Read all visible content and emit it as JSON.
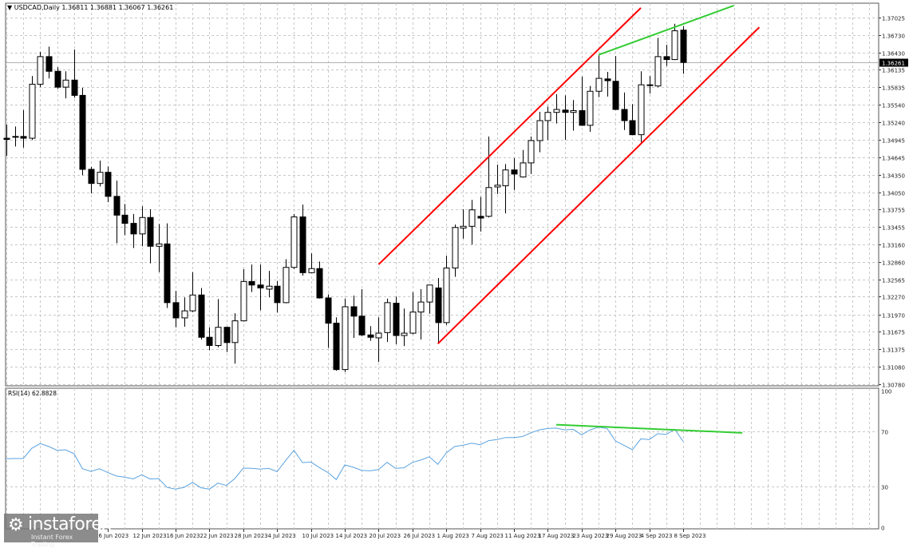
{
  "header": {
    "menu_icon": "triangle-down-icon",
    "title": "USDCAD,Daily 1.36811 1.36881 1.36067 1.36261"
  },
  "rsi": {
    "label": "RSI(14) 62.8828"
  },
  "logo": {
    "name": "instaforex",
    "tagline": "Instant Forex Trading",
    "icon": "gear-icon"
  },
  "colors": {
    "bull_body": "#ffffff",
    "bear_body": "#000000",
    "channel": "#ff0000",
    "divergence": "#33cc33",
    "rsi_line": "#5ba3e0",
    "grid": "#c8c8c8",
    "current_price_bg": "#000000"
  },
  "chart_data": [
    {
      "type": "candlestick",
      "symbol": "USDCAD",
      "timeframe": "Daily",
      "current_price": "1.36261",
      "ylim": [
        1.3078,
        1.372
      ],
      "grid": true,
      "price_ticks": [
        "1.37025",
        "1.36730",
        "1.36430",
        "1.36135",
        "1.35835",
        "1.35540",
        "1.35240",
        "1.34945",
        "1.34645",
        "1.34350",
        "1.34050",
        "1.33755",
        "1.33455",
        "1.33160",
        "1.32860",
        "1.32565",
        "1.32270",
        "1.31970",
        "1.31675",
        "1.31375",
        "1.31080",
        "1.30780"
      ],
      "x_ticks": [
        {
          "date": "2023-06-06",
          "label": "6 Jun 2023"
        },
        {
          "date": "2023-06-12",
          "label": "12 Jun 2023"
        },
        {
          "date": "2023-06-16",
          "label": "16 Jun 2023"
        },
        {
          "date": "2023-06-22",
          "label": "22 Jun 2023"
        },
        {
          "date": "2023-06-28",
          "label": "28 Jun 2023"
        },
        {
          "date": "2023-07-04",
          "label": "4 Jul 2023"
        },
        {
          "date": "2023-07-10",
          "label": "10 Jul 2023"
        },
        {
          "date": "2023-07-14",
          "label": "14 Jul 2023"
        },
        {
          "date": "2023-07-20",
          "label": "20 Jul 2023"
        },
        {
          "date": "2023-07-26",
          "label": "26 Jul 2023"
        },
        {
          "date": "2023-08-01",
          "label": "1 Aug 2023"
        },
        {
          "date": "2023-08-07",
          "label": "7 Aug 2023"
        },
        {
          "date": "2023-08-11",
          "label": "11 Aug 2023"
        },
        {
          "date": "2023-08-17",
          "label": "17 Aug 2023"
        },
        {
          "date": "2023-08-23",
          "label": "23 Aug 2023"
        },
        {
          "date": "2023-08-29",
          "label": "29 Aug 2023"
        },
        {
          "date": "2023-09-04",
          "label": "4 Sep 2023"
        },
        {
          "date": "2023-09-08",
          "label": "8 Sep 2023"
        }
      ],
      "candles": [
        [
          "2023-05-19",
          1.3497,
          1.352,
          1.3467,
          1.3495
        ],
        [
          "2023-05-22",
          1.35,
          1.3517,
          1.3483,
          1.35
        ],
        [
          "2023-05-23",
          1.35,
          1.3545,
          1.3481,
          1.3497
        ],
        [
          "2023-05-24",
          1.3497,
          1.3603,
          1.3494,
          1.3589
        ],
        [
          "2023-05-25",
          1.3589,
          1.3644,
          1.3584,
          1.3636
        ],
        [
          "2023-05-26",
          1.3636,
          1.3653,
          1.3599,
          1.3611
        ],
        [
          "2023-05-29",
          1.3611,
          1.3618,
          1.3581,
          1.3584
        ],
        [
          "2023-05-30",
          1.3584,
          1.3611,
          1.3565,
          1.3596
        ],
        [
          "2023-05-31",
          1.3596,
          1.3648,
          1.3566,
          1.357
        ],
        [
          "2023-06-01",
          1.357,
          1.3583,
          1.3434,
          1.3444
        ],
        [
          "2023-06-02",
          1.3444,
          1.3448,
          1.3403,
          1.342
        ],
        [
          "2023-06-05",
          1.342,
          1.3459,
          1.3415,
          1.3439
        ],
        [
          "2023-06-06",
          1.3439,
          1.3449,
          1.3388,
          1.3398
        ],
        [
          "2023-06-07",
          1.3398,
          1.3425,
          1.3318,
          1.3366
        ],
        [
          "2023-06-08",
          1.3366,
          1.3385,
          1.3332,
          1.3352
        ],
        [
          "2023-06-09",
          1.3352,
          1.3368,
          1.331,
          1.3334
        ],
        [
          "2023-06-12",
          1.3334,
          1.3381,
          1.3313,
          1.3362
        ],
        [
          "2023-06-13",
          1.3362,
          1.3376,
          1.3284,
          1.3313
        ],
        [
          "2023-06-14",
          1.3313,
          1.3351,
          1.3269,
          1.3317
        ],
        [
          "2023-06-15",
          1.3317,
          1.3352,
          1.3208,
          1.3217
        ],
        [
          "2023-06-16",
          1.3217,
          1.3237,
          1.3175,
          1.3191
        ],
        [
          "2023-06-19",
          1.3191,
          1.3226,
          1.3176,
          1.3203
        ],
        [
          "2023-06-20",
          1.3203,
          1.3269,
          1.3201,
          1.323
        ],
        [
          "2023-06-21",
          1.323,
          1.3242,
          1.3154,
          1.3158
        ],
        [
          "2023-06-22",
          1.3158,
          1.3175,
          1.3136,
          1.3144
        ],
        [
          "2023-06-23",
          1.3144,
          1.3223,
          1.3141,
          1.3175
        ],
        [
          "2023-06-26",
          1.3175,
          1.3176,
          1.3133,
          1.3149
        ],
        [
          "2023-06-27",
          1.3149,
          1.3199,
          1.3113,
          1.3186
        ],
        [
          "2023-06-28",
          1.3186,
          1.3274,
          1.3185,
          1.3253
        ],
        [
          "2023-06-29",
          1.3253,
          1.3282,
          1.3235,
          1.3247
        ],
        [
          "2023-06-30",
          1.3247,
          1.3282,
          1.3204,
          1.3242
        ],
        [
          "2023-07-03",
          1.324,
          1.3271,
          1.3226,
          1.3245
        ],
        [
          "2023-07-04",
          1.3245,
          1.3254,
          1.32,
          1.3217
        ],
        [
          "2023-07-05",
          1.3217,
          1.3291,
          1.3216,
          1.3277
        ],
        [
          "2023-07-06",
          1.3277,
          1.3368,
          1.3274,
          1.3363
        ],
        [
          "2023-07-07",
          1.3363,
          1.3384,
          1.3263,
          1.3268
        ],
        [
          "2023-07-10",
          1.3268,
          1.3301,
          1.3267,
          1.3275
        ],
        [
          "2023-07-11",
          1.3275,
          1.3287,
          1.3224,
          1.3225
        ],
        [
          "2023-07-12",
          1.3225,
          1.3231,
          1.314,
          1.3182
        ],
        [
          "2023-07-13",
          1.3182,
          1.3192,
          1.3101,
          1.3103
        ],
        [
          "2023-07-14",
          1.3103,
          1.3224,
          1.3099,
          1.321
        ],
        [
          "2023-07-17",
          1.321,
          1.3229,
          1.3157,
          1.3194
        ],
        [
          "2023-07-18",
          1.3194,
          1.324,
          1.316,
          1.3162
        ],
        [
          "2023-07-19",
          1.3162,
          1.3177,
          1.3152,
          1.3158
        ],
        [
          "2023-07-20",
          1.3157,
          1.3192,
          1.3116,
          1.3165
        ],
        [
          "2023-07-21",
          1.3166,
          1.3224,
          1.315,
          1.3217
        ],
        [
          "2023-07-24",
          1.3216,
          1.3227,
          1.3146,
          1.3161
        ],
        [
          "2023-07-25",
          1.3161,
          1.3207,
          1.3143,
          1.3165
        ],
        [
          "2023-07-26",
          1.3165,
          1.3235,
          1.3163,
          1.3201
        ],
        [
          "2023-07-27",
          1.3201,
          1.324,
          1.3154,
          1.3218
        ],
        [
          "2023-07-28",
          1.3218,
          1.3247,
          1.3198,
          1.3247
        ],
        [
          "2023-07-31",
          1.3242,
          1.3259,
          1.3147,
          1.3183
        ],
        [
          "2023-08-01",
          1.3183,
          1.3297,
          1.3179,
          1.3276
        ],
        [
          "2023-08-02",
          1.3276,
          1.335,
          1.3261,
          1.3345
        ],
        [
          "2023-08-03",
          1.3344,
          1.3376,
          1.3326,
          1.3347
        ],
        [
          "2023-08-04",
          1.3347,
          1.3392,
          1.3316,
          1.3375
        ],
        [
          "2023-08-07",
          1.3364,
          1.3397,
          1.3338,
          1.3361
        ],
        [
          "2023-08-08",
          1.3364,
          1.35,
          1.3362,
          1.3413
        ],
        [
          "2023-08-09",
          1.3414,
          1.3452,
          1.3402,
          1.3417
        ],
        [
          "2023-08-10",
          1.3416,
          1.3453,
          1.3369,
          1.3443
        ],
        [
          "2023-08-11",
          1.3443,
          1.3463,
          1.3409,
          1.3436
        ],
        [
          "2023-08-14",
          1.3431,
          1.3477,
          1.343,
          1.3455
        ],
        [
          "2023-08-15",
          1.3455,
          1.35,
          1.3436,
          1.3493
        ],
        [
          "2023-08-16",
          1.3493,
          1.3542,
          1.3473,
          1.3527
        ],
        [
          "2023-08-17",
          1.3527,
          1.3551,
          1.3494,
          1.3541
        ],
        [
          "2023-08-18",
          1.3541,
          1.3572,
          1.3522,
          1.3546
        ],
        [
          "2023-08-21",
          1.3545,
          1.357,
          1.3494,
          1.3541
        ],
        [
          "2023-08-22",
          1.3541,
          1.3562,
          1.351,
          1.3544
        ],
        [
          "2023-08-23",
          1.3544,
          1.3602,
          1.3518,
          1.3519
        ],
        [
          "2023-08-24",
          1.3519,
          1.3586,
          1.3508,
          1.3577
        ],
        [
          "2023-08-25",
          1.3577,
          1.3638,
          1.3567,
          1.3599
        ],
        [
          "2023-08-28",
          1.3598,
          1.361,
          1.3568,
          1.3595
        ],
        [
          "2023-08-29",
          1.3594,
          1.3637,
          1.3545,
          1.3546
        ],
        [
          "2023-08-30",
          1.3546,
          1.3575,
          1.3511,
          1.3527
        ],
        [
          "2023-08-31",
          1.3527,
          1.3555,
          1.3502,
          1.3503
        ],
        [
          "2023-09-01",
          1.3503,
          1.3611,
          1.349,
          1.3588
        ],
        [
          "2023-09-04",
          1.3587,
          1.3603,
          1.3573,
          1.3588
        ],
        [
          "2023-09-05",
          1.3586,
          1.3668,
          1.3584,
          1.3636
        ],
        [
          "2023-09-06",
          1.3636,
          1.3656,
          1.362,
          1.3631
        ],
        [
          "2023-09-07",
          1.3631,
          1.3692,
          1.363,
          1.368
        ],
        [
          "2023-09-08",
          1.36811,
          1.36881,
          1.36067,
          1.36261
        ]
      ],
      "trendlines": [
        {
          "kind": "channel-upper",
          "color": "#ff0000",
          "from": [
            "2023-07-20",
            1.3282
          ],
          "to": [
            "2023-09-01",
            1.3719
          ]
        },
        {
          "kind": "channel-lower",
          "color": "#ff0000",
          "from": [
            "2023-07-31",
            1.3147
          ],
          "to": [
            "2023-09-21",
            1.3686
          ]
        },
        {
          "kind": "divergence-price",
          "color": "#33cc33",
          "from": [
            "2023-08-25",
            1.3639
          ],
          "to": [
            "2023-09-18",
            1.3723
          ]
        }
      ]
    },
    {
      "type": "line",
      "series": [
        {
          "name": "RSI(14)",
          "values": [
            50.1,
            50.3,
            50.3,
            57.8,
            61.2,
            59.1,
            56.3,
            56.7,
            53.8,
            42.8,
            40.9,
            42.8,
            40.0,
            37.5,
            36.6,
            35.4,
            38.4,
            35.3,
            35.6,
            29.1,
            27.9,
            29.2,
            32.8,
            28.9,
            27.9,
            32.3,
            30.6,
            35.6,
            43.3,
            43.1,
            42.6,
            43.1,
            40.7,
            48.8,
            56.3,
            47.3,
            47.7,
            43.7,
            40.1,
            34.9,
            45.6,
            43.9,
            41.6,
            41.3,
            42.2,
            47.5,
            43.1,
            43.5,
            47.5,
            49.2,
            51.6,
            46.0,
            54.4,
            59.1,
            60.0,
            61.5,
            60.4,
            63.4,
            64.2,
            65.7,
            65.7,
            66.4,
            69.1,
            71.3,
            72.3,
            72.6,
            71.3,
            71.7,
            67.6,
            71.3,
            73.2,
            72.3,
            63.2,
            60.0,
            56.7,
            64.7,
            64.2,
            68.5,
            67.9,
            71.7,
            62.8828
          ]
        }
      ],
      "ylim": [
        0,
        100
      ],
      "y_ticks": [
        "100",
        "70",
        "30",
        "0"
      ],
      "trendlines": [
        {
          "kind": "divergence-rsi",
          "color": "#33cc33",
          "from": [
            "2023-08-18",
            75.1
          ],
          "to": [
            "2023-09-19",
            69.1
          ]
        }
      ]
    }
  ]
}
